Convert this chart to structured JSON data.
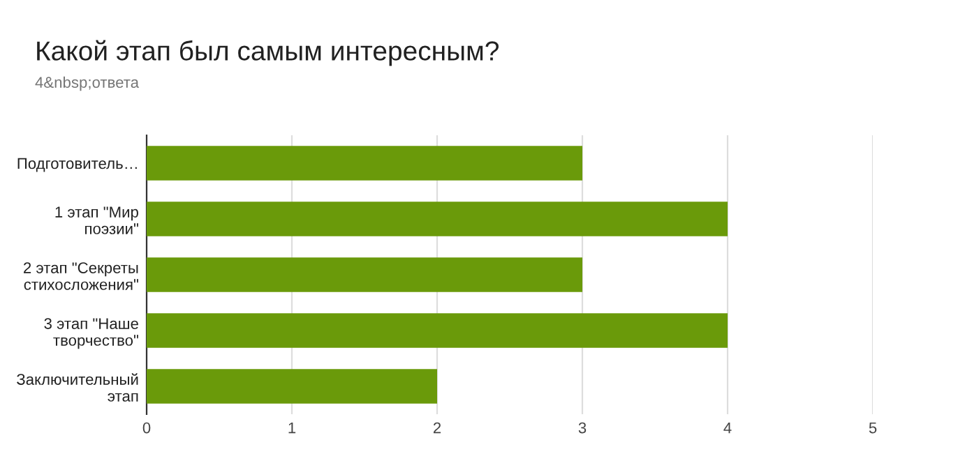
{
  "chart_data": {
    "type": "bar",
    "orientation": "horizontal",
    "title": "Какой этап был самым интересным?",
    "subtitle": "4&nbsp;ответа",
    "categories": [
      "Подготовитель…",
      "1 этап \"Мир\nпоэзии\"",
      "2 этап \"Секреты\nстихосложения\"",
      "3 этап \"Наше\nтворчество\"",
      "Заключительный\nэтап"
    ],
    "values": [
      3,
      4,
      3,
      4,
      2
    ],
    "color": "#6a9a0a",
    "xlim": [
      0,
      5
    ],
    "xticks": [
      0,
      1,
      2,
      3,
      4,
      5
    ],
    "grid": "x"
  }
}
